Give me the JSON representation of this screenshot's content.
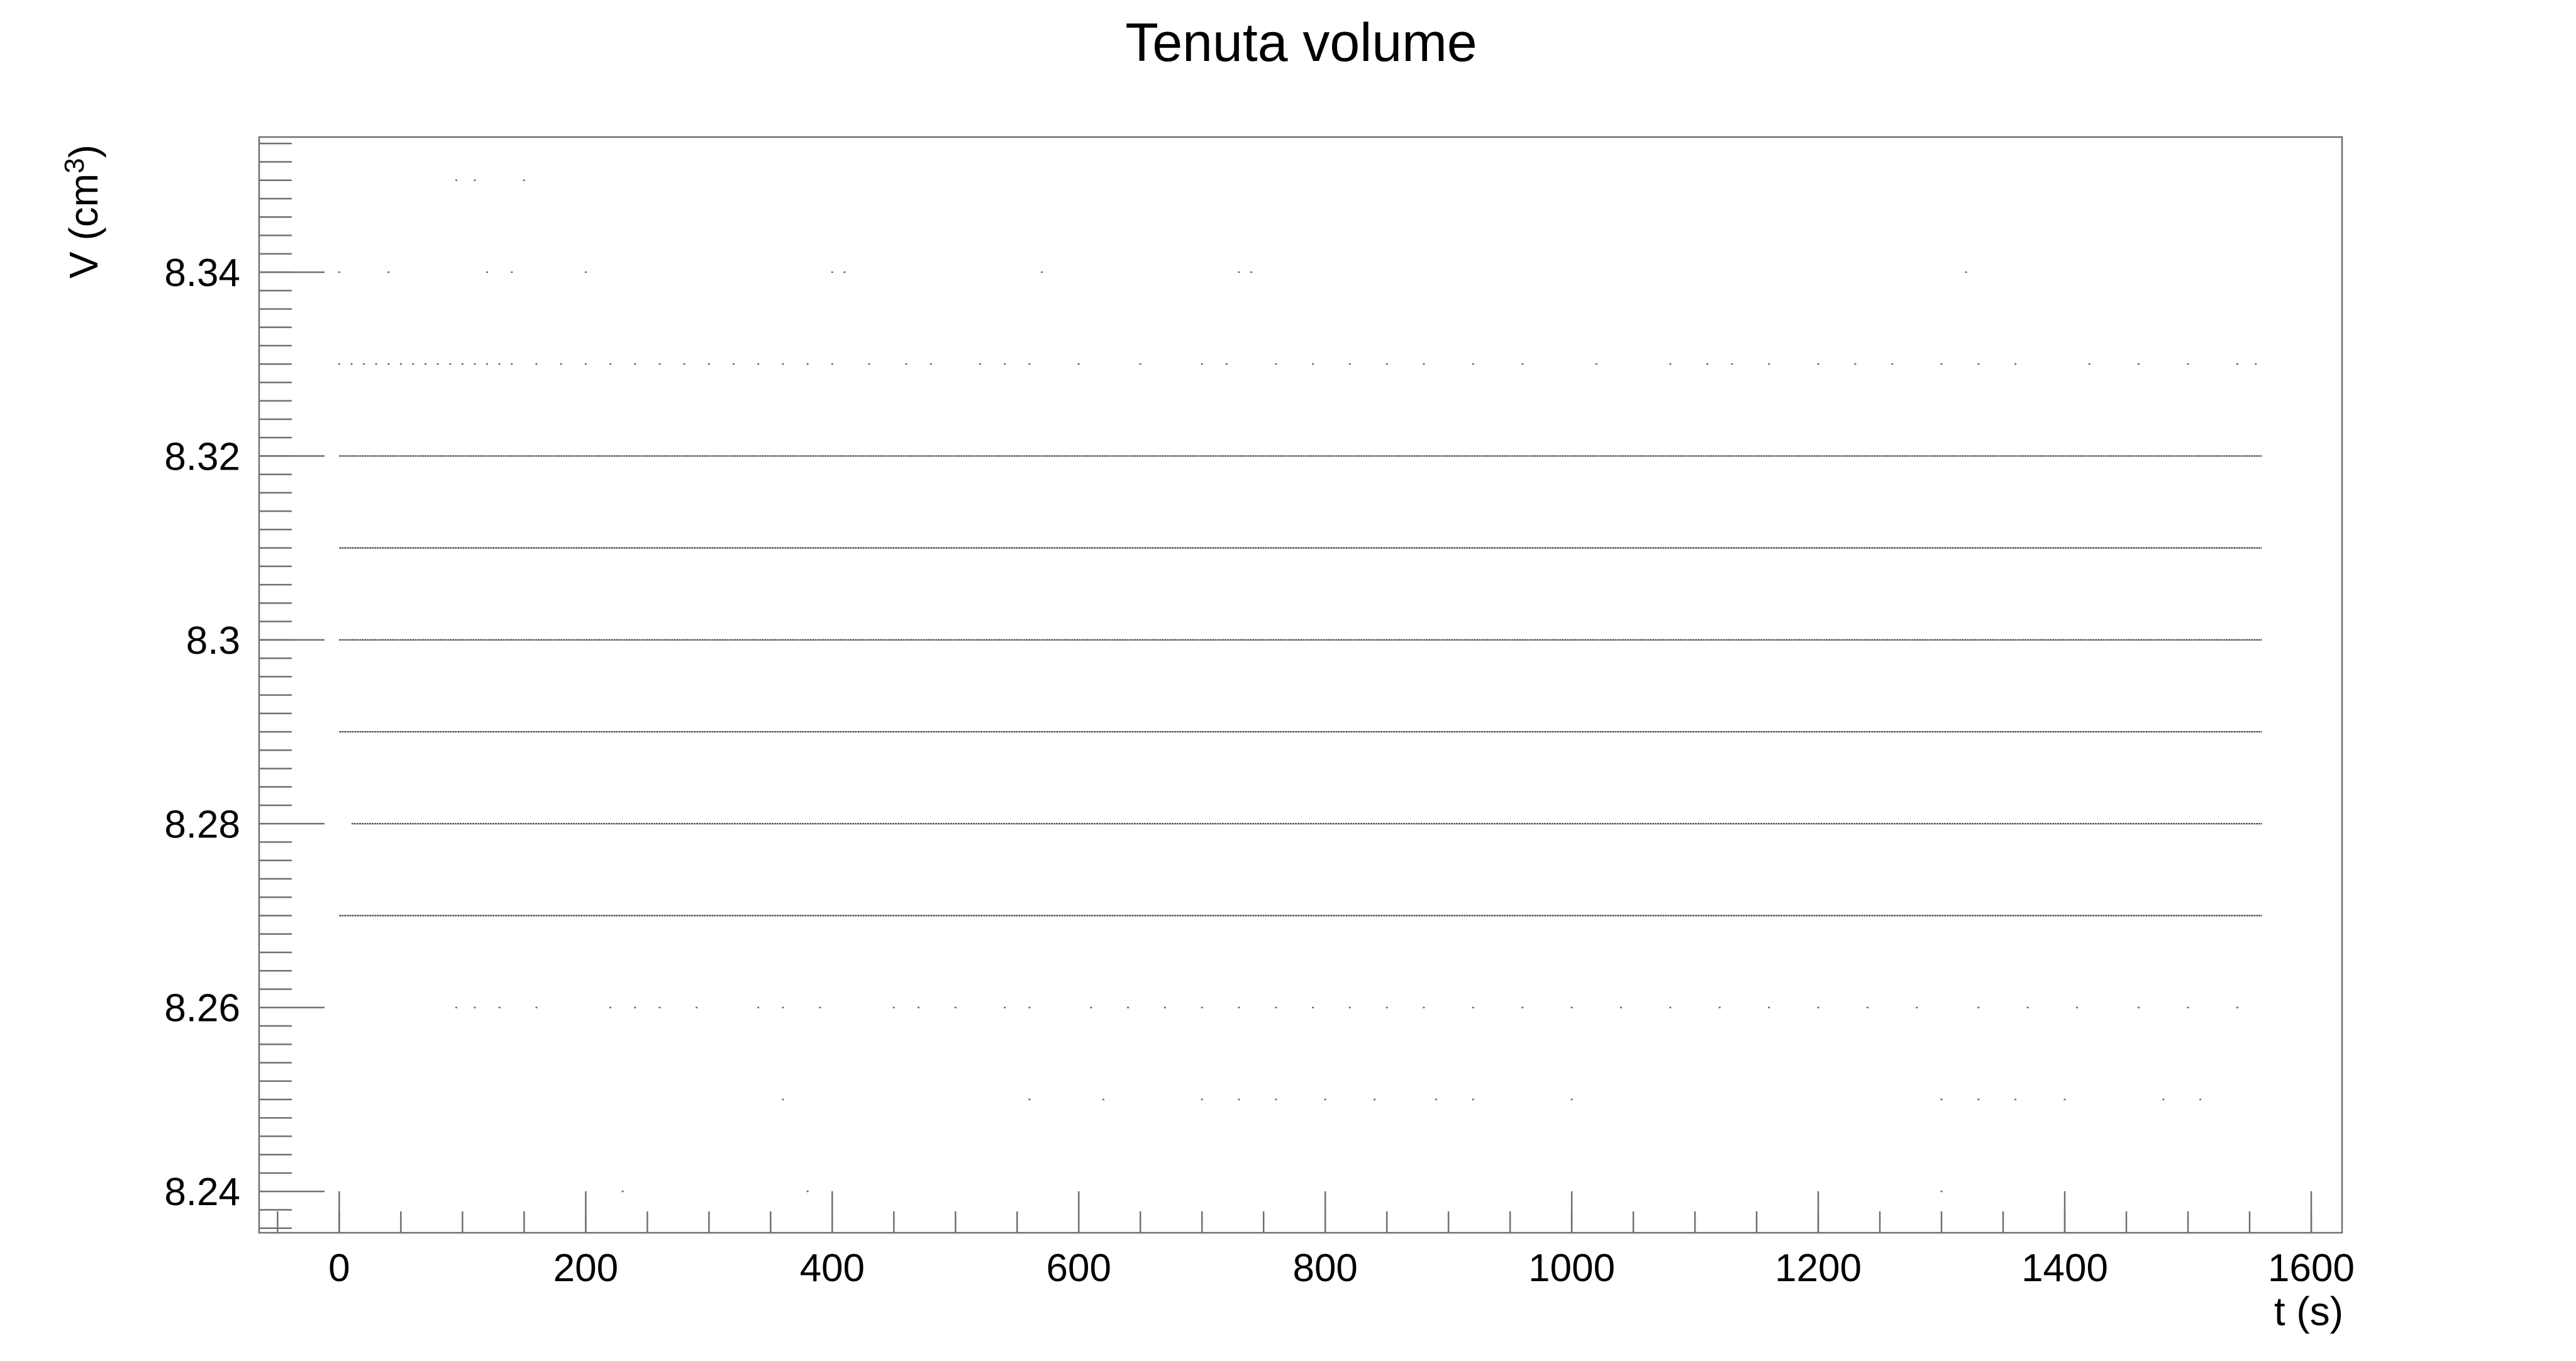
{
  "chart_data": {
    "type": "scatter",
    "title": "Tenuta volume",
    "xlabel": "t (s)",
    "ylabel_base": "V (cm",
    "ylabel_sup": "3",
    "ylabel_close": ")",
    "xlim": [
      -65,
      1625
    ],
    "ylim": [
      8.2355,
      8.3547
    ],
    "x_ticks": [
      0,
      200,
      400,
      600,
      800,
      1000,
      1200,
      1400,
      1600
    ],
    "x_tick_labels": [
      "0",
      "200",
      "400",
      "600",
      "800",
      "1000",
      "1200",
      "1400",
      "1600"
    ],
    "y_ticks": [
      8.24,
      8.26,
      8.28,
      8.3,
      8.32,
      8.34
    ],
    "y_tick_labels": [
      "8.24",
      "8.26",
      "8.28",
      "8.3",
      "8.32",
      "8.34"
    ],
    "grid": false,
    "legend": "none",
    "point_color": "#000000",
    "x_range_of_data": [
      0,
      1560
    ],
    "levels": [
      {
        "v": 8.35,
        "x": [
          95,
          110,
          150
        ]
      },
      {
        "v": 8.34,
        "x": [
          0,
          40,
          120,
          140,
          200,
          400,
          410,
          570,
          730,
          740,
          1320
        ]
      },
      {
        "v": 8.33,
        "x": [
          0,
          10,
          20,
          30,
          40,
          50,
          60,
          70,
          80,
          90,
          100,
          110,
          120,
          130,
          140,
          160,
          180,
          200,
          220,
          240,
          260,
          280,
          300,
          320,
          340,
          360,
          380,
          400,
          430,
          460,
          480,
          520,
          540,
          560,
          600,
          650,
          700,
          720,
          760,
          790,
          820,
          850,
          880,
          920,
          960,
          1020,
          1080,
          1110,
          1130,
          1160,
          1200,
          1230,
          1260,
          1300,
          1330,
          1360,
          1420,
          1460,
          1500,
          1540,
          1555
        ]
      },
      {
        "v": 8.32,
        "x": [
          0,
          1560
        ]
      },
      {
        "v": 8.31,
        "x": [
          0,
          1560
        ]
      },
      {
        "v": 8.3,
        "x": [
          0,
          1560
        ]
      },
      {
        "v": 8.29,
        "x": [
          0,
          1560
        ]
      },
      {
        "v": 8.28,
        "x": [
          10,
          1560
        ]
      },
      {
        "v": 8.27,
        "x": [
          0,
          1560
        ]
      },
      {
        "v": 8.26,
        "x": [
          95,
          110,
          130,
          160,
          220,
          240,
          260,
          290,
          340,
          360,
          390,
          450,
          470,
          500,
          540,
          560,
          610,
          640,
          670,
          700,
          730,
          760,
          790,
          820,
          850,
          880,
          920,
          960,
          1000,
          1040,
          1080,
          1120,
          1160,
          1200,
          1240,
          1280,
          1330,
          1370,
          1410,
          1460,
          1500,
          1540
        ]
      },
      {
        "v": 8.25,
        "x": [
          360,
          560,
          620,
          700,
          730,
          760,
          800,
          840,
          890,
          920,
          1000,
          1300,
          1330,
          1360,
          1400,
          1480,
          1510
        ]
      },
      {
        "v": 8.24,
        "x": [
          230,
          380,
          1300
        ]
      }
    ]
  }
}
